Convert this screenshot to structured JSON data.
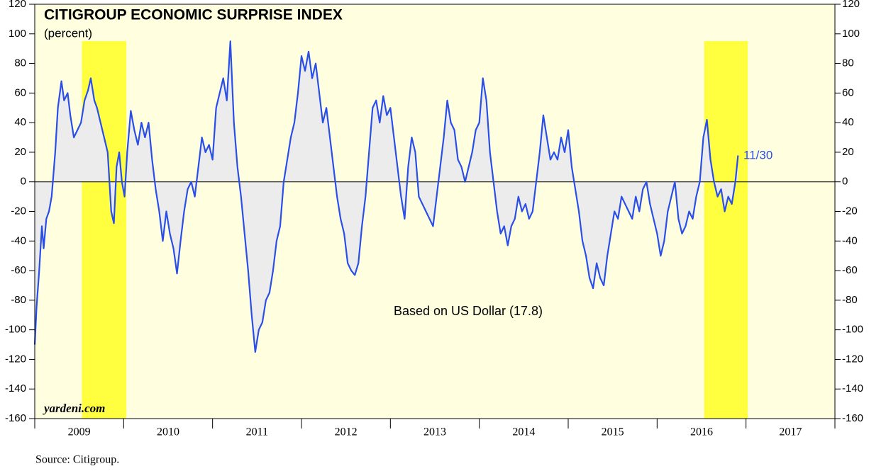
{
  "chart_data": {
    "type": "line",
    "title": "CITIGROUP ECONOMIC SURPRISE INDEX",
    "subtitle": "(percent)",
    "source": "Source: Citigroup.",
    "watermark": "yardeni.com",
    "annotations": [
      "11/30",
      "Based on US Dollar (17.8)"
    ],
    "color": "#2a4fe8",
    "fill_color": "#ececec",
    "shaded_regions": [
      [
        2009.53,
        2010.03
      ],
      [
        2016.53,
        2017.02
      ]
    ],
    "shade_color": "#ffff40",
    "xlim": [
      2009,
      2018
    ],
    "xticks": [
      2009,
      2010,
      2011,
      2012,
      2013,
      2014,
      2015,
      2016,
      2017
    ],
    "ylim": [
      -160,
      120
    ],
    "yticks": [
      -160,
      -140,
      -120,
      -100,
      -80,
      -60,
      -40,
      -20,
      0,
      20,
      40,
      60,
      80,
      100,
      120
    ],
    "y2lim": [
      -160,
      120
    ],
    "y2ticks": [
      -160,
      -140,
      -120,
      -100,
      -80,
      -60,
      -40,
      -20,
      0,
      20,
      40,
      60,
      80,
      100,
      120
    ],
    "x": [
      2009,
      2009.02,
      2009.05,
      2009.08,
      2009.1,
      2009.13,
      2009.16,
      2009.19,
      2009.23,
      2009.26,
      2009.3,
      2009.33,
      2009.37,
      2009.4,
      2009.44,
      2009.48,
      2009.52,
      2009.56,
      2009.6,
      2009.63,
      2009.67,
      2009.7,
      2009.74,
      2009.78,
      2009.82,
      2009.86,
      2009.89,
      2009.92,
      2009.95,
      2009.98,
      2010.01,
      2010.04,
      2010.08,
      2010.12,
      2010.16,
      2010.2,
      2010.24,
      2010.28,
      2010.32,
      2010.36,
      2010.4,
      2010.44,
      2010.48,
      2010.52,
      2010.56,
      2010.6,
      2010.64,
      2010.68,
      2010.72,
      2010.76,
      2010.8,
      2010.84,
      2010.88,
      2010.92,
      2010.96,
      2011,
      2011.04,
      2011.08,
      2011.12,
      2011.16,
      2011.2,
      2011.24,
      2011.28,
      2011.32,
      2011.36,
      2011.4,
      2011.44,
      2011.48,
      2011.52,
      2011.56,
      2011.6,
      2011.64,
      2011.68,
      2011.72,
      2011.76,
      2011.8,
      2011.84,
      2011.88,
      2011.92,
      2011.96,
      2012,
      2012.04,
      2012.08,
      2012.12,
      2012.16,
      2012.2,
      2012.24,
      2012.28,
      2012.32,
      2012.36,
      2012.4,
      2012.44,
      2012.48,
      2012.52,
      2012.56,
      2012.6,
      2012.64,
      2012.68,
      2012.72,
      2012.76,
      2012.8,
      2012.84,
      2012.88,
      2012.92,
      2012.96,
      2013,
      2013.04,
      2013.08,
      2013.12,
      2013.16,
      2013.2,
      2013.24,
      2013.28,
      2013.32,
      2013.36,
      2013.4,
      2013.44,
      2013.48,
      2013.52,
      2013.56,
      2013.6,
      2013.64,
      2013.68,
      2013.72,
      2013.76,
      2013.8,
      2013.84,
      2013.88,
      2013.92,
      2013.96,
      2014,
      2014.04,
      2014.08,
      2014.12,
      2014.16,
      2014.2,
      2014.24,
      2014.28,
      2014.32,
      2014.36,
      2014.4,
      2014.44,
      2014.48,
      2014.52,
      2014.56,
      2014.6,
      2014.64,
      2014.68,
      2014.72,
      2014.76,
      2014.8,
      2014.84,
      2014.88,
      2014.92,
      2014.96,
      2015,
      2015.04,
      2015.08,
      2015.12,
      2015.16,
      2015.2,
      2015.24,
      2015.28,
      2015.32,
      2015.36,
      2015.4,
      2015.44,
      2015.48,
      2015.52,
      2015.56,
      2015.6,
      2015.64,
      2015.68,
      2015.72,
      2015.76,
      2015.8,
      2015.84,
      2015.88,
      2015.92,
      2015.96,
      2016,
      2016.04,
      2016.08,
      2016.12,
      2016.16,
      2016.2,
      2016.24,
      2016.28,
      2016.32,
      2016.36,
      2016.4,
      2016.44,
      2016.48,
      2016.52,
      2016.56,
      2016.6,
      2016.64,
      2016.68,
      2016.72,
      2016.76,
      2016.8,
      2016.84,
      2016.88,
      2016.91
    ],
    "values": [
      -110,
      -85,
      -60,
      -30,
      -45,
      -25,
      -20,
      -10,
      20,
      50,
      68,
      55,
      60,
      45,
      30,
      35,
      40,
      55,
      62,
      70,
      55,
      50,
      40,
      30,
      20,
      -20,
      -28,
      10,
      20,
      0,
      -10,
      20,
      48,
      35,
      25,
      40,
      30,
      40,
      15,
      -5,
      -20,
      -40,
      -20,
      -35,
      -45,
      -62,
      -40,
      -20,
      -5,
      0,
      -10,
      10,
      30,
      20,
      25,
      15,
      50,
      60,
      70,
      55,
      95,
      40,
      10,
      -10,
      -35,
      -60,
      -90,
      -115,
      -100,
      -95,
      -80,
      -75,
      -60,
      -40,
      -30,
      0,
      15,
      30,
      40,
      60,
      85,
      75,
      88,
      70,
      80,
      60,
      40,
      50,
      30,
      10,
      -10,
      -25,
      -35,
      -55,
      -60,
      -63,
      -55,
      -30,
      -10,
      20,
      50,
      55,
      40,
      58,
      45,
      50,
      30,
      10,
      -10,
      -25,
      10,
      30,
      20,
      -10,
      -15,
      -20,
      -25,
      -30,
      -10,
      10,
      30,
      55,
      40,
      35,
      15,
      10,
      0,
      10,
      20,
      35,
      40,
      70,
      55,
      20,
      0,
      -20,
      -35,
      -30,
      -43,
      -30,
      -25,
      -10,
      -20,
      -15,
      -25,
      -20,
      0,
      20,
      45,
      30,
      15,
      20,
      15,
      30,
      20,
      35,
      10,
      -5,
      -20,
      -40,
      -50,
      -65,
      -72,
      -55,
      -65,
      -70,
      -50,
      -35,
      -20,
      -25,
      -10,
      -15,
      -20,
      -25,
      -10,
      -20,
      -5,
      0,
      -15,
      -25,
      -35,
      -50,
      -40,
      -20,
      -10,
      0,
      -25,
      -35,
      -30,
      -20,
      -25,
      -10,
      0,
      30,
      42,
      15,
      0,
      -10,
      -5,
      -20,
      -10,
      -15,
      0,
      17.8
    ]
  }
}
